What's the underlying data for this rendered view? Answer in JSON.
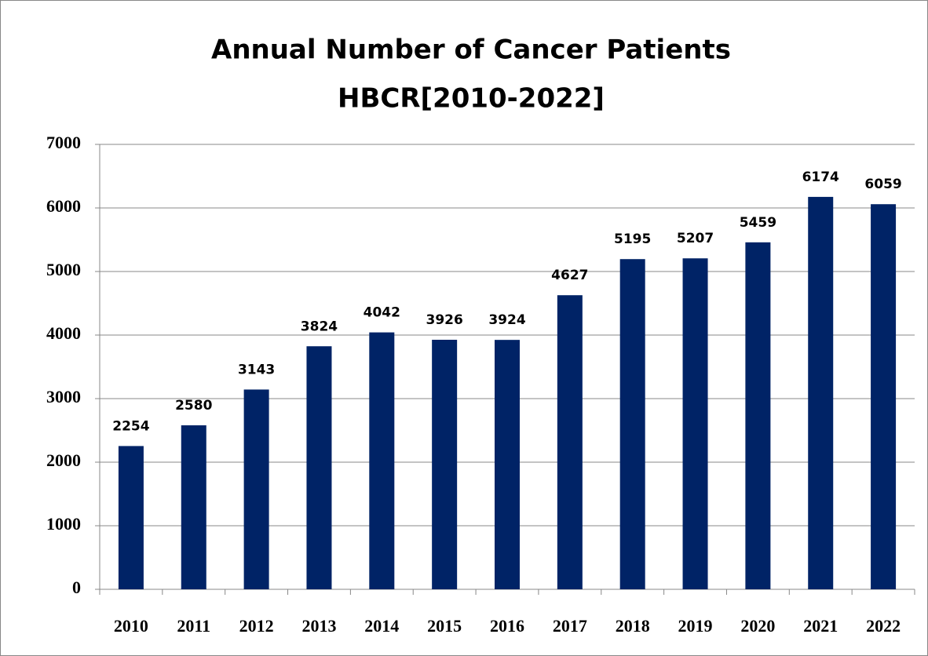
{
  "chart_data": {
    "type": "bar",
    "title": "Annual Number of Cancer Patients",
    "subtitle": "HBCR[2010-2022]",
    "categories": [
      "2010",
      "2011",
      "2012",
      "2013",
      "2014",
      "2015",
      "2016",
      "2017",
      "2018",
      "2019",
      "2020",
      "2021",
      "2022"
    ],
    "values": [
      2254,
      2580,
      3143,
      3824,
      4042,
      3926,
      3924,
      4627,
      5195,
      5207,
      5459,
      6174,
      6059
    ],
    "color": "#002366",
    "ylim": [
      0,
      7000
    ],
    "yticks": [
      0,
      1000,
      2000,
      3000,
      4000,
      5000,
      6000,
      7000
    ],
    "grid": true
  }
}
